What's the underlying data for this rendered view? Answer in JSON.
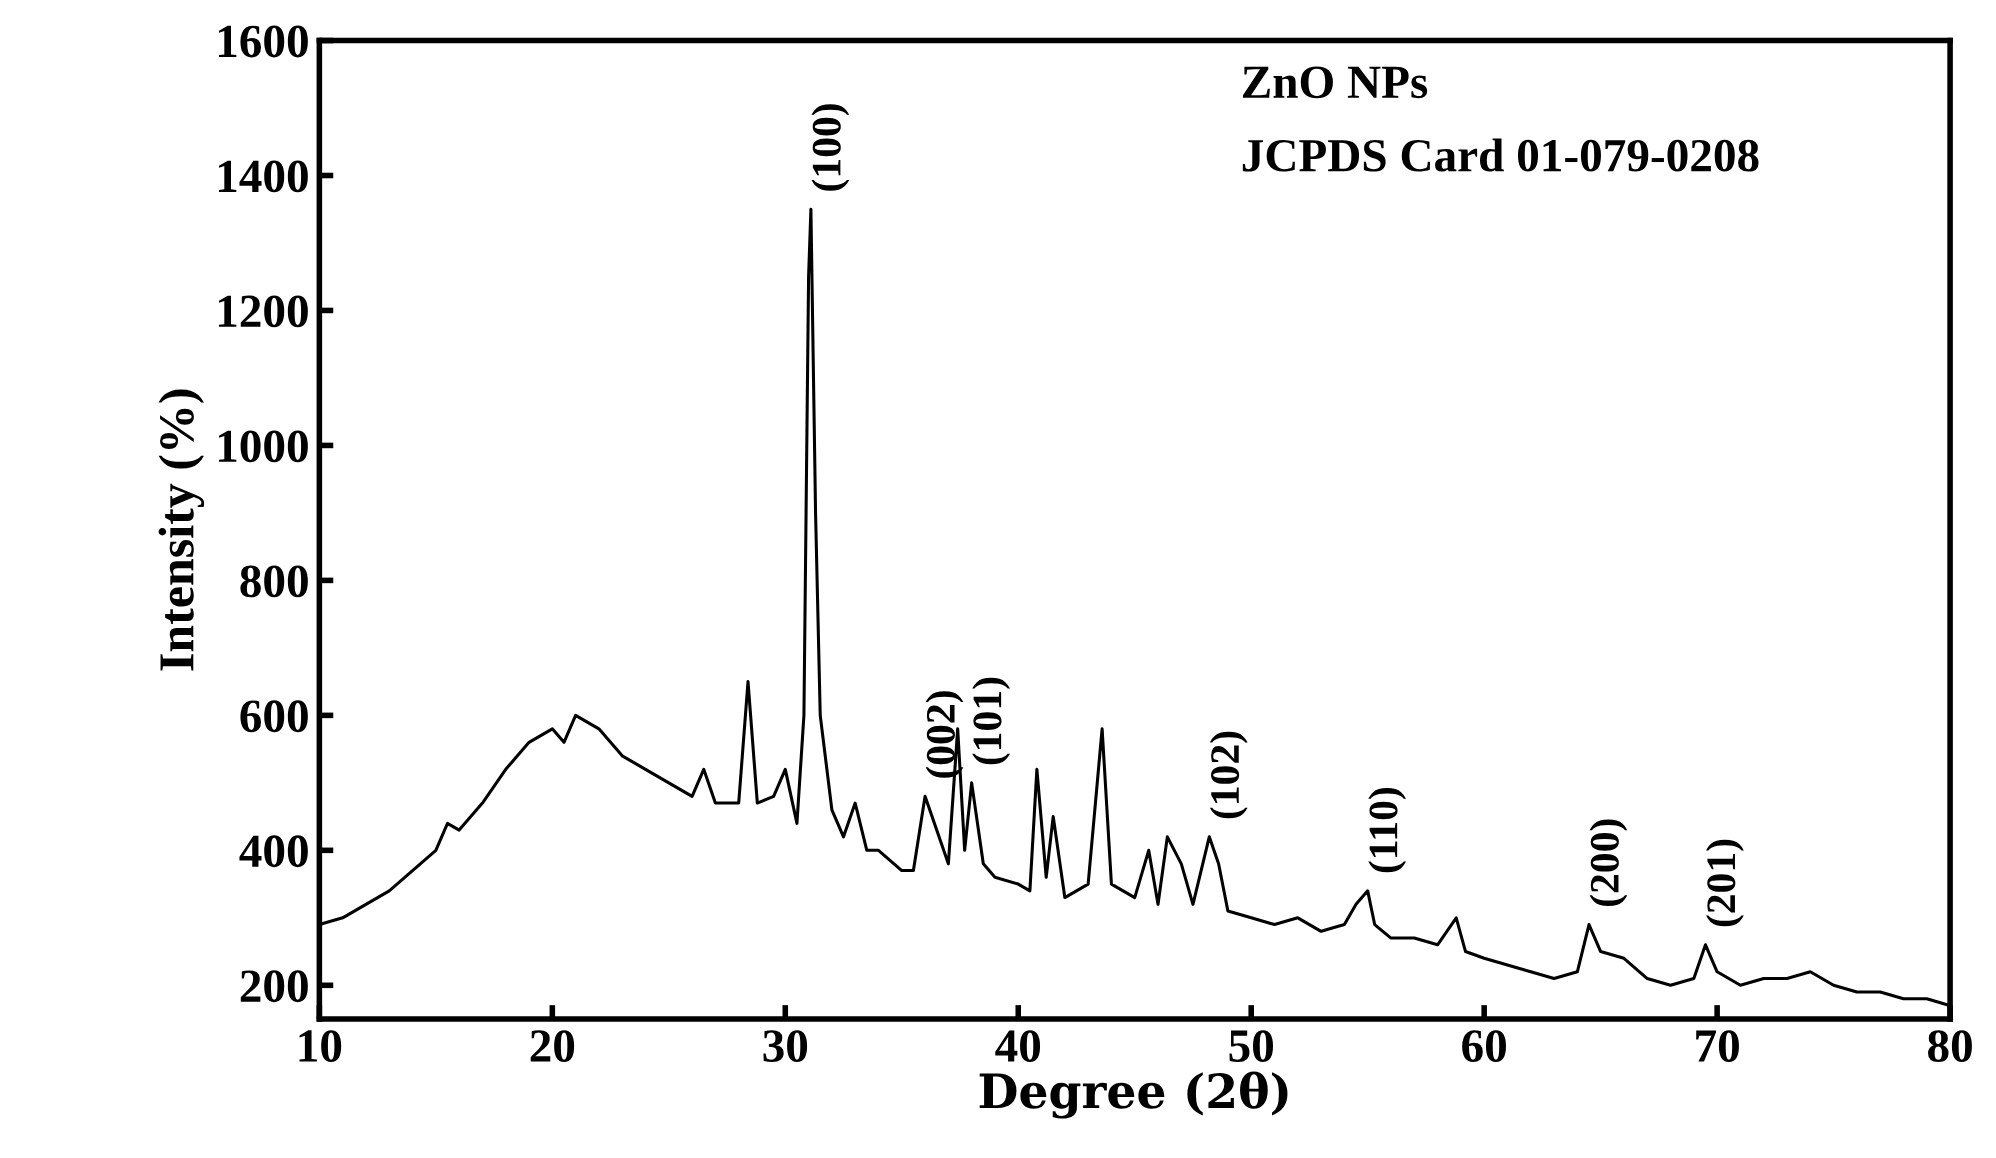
{
  "chart_data": {
    "type": "line",
    "xlabel": "Degree (2θ)",
    "ylabel": "Intensity (%)",
    "x": [
      10,
      11,
      12,
      13,
      14,
      15,
      15.5,
      16,
      17,
      18,
      19,
      20,
      20.5,
      21,
      22,
      23,
      24,
      25,
      26,
      26.5,
      27,
      28,
      28.4,
      28.8,
      29.5,
      30,
      30.5,
      30.8,
      31.0,
      31.1,
      31.3,
      31.5,
      32,
      32.5,
      33,
      33.5,
      34,
      35,
      35.5,
      36,
      36.3,
      37,
      37.4,
      37.7,
      38,
      38.5,
      39,
      40,
      40.5,
      40.8,
      41.2,
      41.5,
      42,
      43,
      43.6,
      44,
      45,
      45.6,
      46,
      46.4,
      47,
      47.5,
      48.2,
      48.6,
      49,
      50,
      51,
      52,
      53,
      54,
      54.5,
      55,
      55.3,
      56,
      57,
      58,
      58.8,
      59.2,
      60,
      61,
      62,
      63,
      64,
      64.5,
      65,
      66,
      67,
      68,
      69,
      69.5,
      70,
      71,
      72,
      73,
      74,
      75,
      76,
      77,
      78,
      79,
      80
    ],
    "series": [
      {
        "color": "#000000",
        "values": [
          290,
          300,
          320,
          340,
          370,
          400,
          440,
          430,
          470,
          520,
          560,
          580,
          560,
          600,
          580,
          540,
          520,
          500,
          480,
          520,
          470,
          470,
          650,
          470,
          480,
          520,
          440,
          600,
          1250,
          1350,
          900,
          600,
          460,
          420,
          470,
          400,
          400,
          370,
          370,
          480,
          450,
          380,
          580,
          400,
          500,
          380,
          360,
          350,
          340,
          520,
          360,
          450,
          330,
          350,
          580,
          350,
          330,
          400,
          320,
          420,
          380,
          320,
          420,
          380,
          310,
          300,
          290,
          300,
          280,
          290,
          320,
          340,
          290,
          270,
          270,
          260,
          300,
          250,
          240,
          230,
          220,
          210,
          220,
          290,
          250,
          240,
          210,
          200,
          210,
          260,
          220,
          200,
          210,
          210,
          220,
          200,
          190,
          190,
          180,
          180,
          170
        ]
      }
    ],
    "xlim": [
      10,
      80
    ],
    "ylim": [
      150,
      1600
    ],
    "xticks": [
      10,
      20,
      30,
      40,
      50,
      60,
      70,
      80
    ],
    "yticks": [
      200,
      400,
      600,
      800,
      1000,
      1200,
      1400,
      1600
    ],
    "grid": false,
    "marker": "none",
    "line_style": "solid",
    "annotations": [
      "ZnO NPs",
      "JCPDS Card 01-079-0208",
      {
        "text": "(100)",
        "x": 31.1,
        "y": 1350
      },
      {
        "text": "(002)",
        "x": 36,
        "y": 480
      },
      {
        "text": "(101)",
        "x": 38,
        "y": 500
      },
      {
        "text": "(102)",
        "x": 48.2,
        "y": 420
      },
      {
        "text": "(110)",
        "x": 55,
        "y": 340
      },
      {
        "text": "(200)",
        "x": 64.5,
        "y": 290
      },
      {
        "text": "(201)",
        "x": 69.5,
        "y": 260
      }
    ]
  }
}
